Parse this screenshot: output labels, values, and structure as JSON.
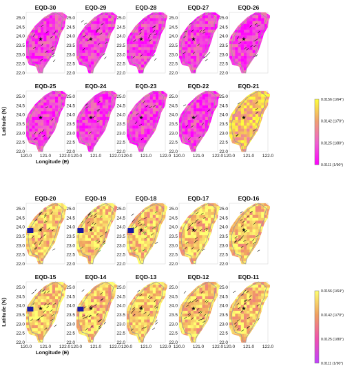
{
  "figure": {
    "xlabel": "Longitude (E)",
    "ylabel": "Latitude (N)"
  },
  "chart_data": [
    {
      "type": "heatmap",
      "group": "top",
      "panels": [
        "EQD-30",
        "EQD-29",
        "EQD-28",
        "EQD-27",
        "EQD-26",
        "EQD-25",
        "EQD-24",
        "EQD-23",
        "EQD-22",
        "EQD-21"
      ],
      "x_ticks": [
        "120.0",
        "121.0",
        "122.0"
      ],
      "y_ticks": [
        "25.0",
        "24.5",
        "24.0",
        "23.5",
        "23.0",
        "22.5",
        "22.0"
      ],
      "xlim": [
        120.0,
        122.0
      ],
      "ylim": [
        22.0,
        25.3
      ],
      "colorbar": {
        "ticks": [
          "0.0156 (1/64°)",
          "0.0142 (1/70°)",
          "0.0125 (1/80°)",
          "0.0111 (1/90°)"
        ],
        "range": [
          0.0111,
          0.0156
        ],
        "colors": [
          "#ff00ff",
          "#f060d0",
          "#f0a070",
          "#ffff3a"
        ]
      }
    },
    {
      "type": "heatmap",
      "group": "bottom",
      "panels": [
        "EQD-20",
        "EQD-19",
        "EQD-18",
        "EQD-17",
        "EQD-16",
        "EQD-15",
        "EQD-14",
        "EQD-13",
        "EQD-12",
        "EQD-11"
      ],
      "x_ticks": [
        "120.0",
        "121.0",
        "122.0"
      ],
      "y_ticks": [
        "25.0",
        "24.5",
        "24.0",
        "23.5",
        "23.0",
        "22.5",
        "22.0"
      ],
      "xlim": [
        120.0,
        122.0
      ],
      "ylim": [
        22.0,
        25.3
      ],
      "colorbar": {
        "ticks": [
          "0.0156 (1/64°)",
          "0.0142 (1/70°)",
          "0.0125 (1/80°)",
          "0.0111 (1/90°)"
        ],
        "range": [
          0.0111,
          0.0156
        ],
        "colors": [
          "#c040ff",
          "#f050b0",
          "#f0a060",
          "#ffff70"
        ]
      }
    }
  ],
  "colors": {
    "island_outline": "#9a9a9a",
    "epicenter_star": "#111111",
    "arrows": "#111111",
    "blue_patch": "#1a1aa0",
    "green_arrows": "#1faa1f"
  }
}
